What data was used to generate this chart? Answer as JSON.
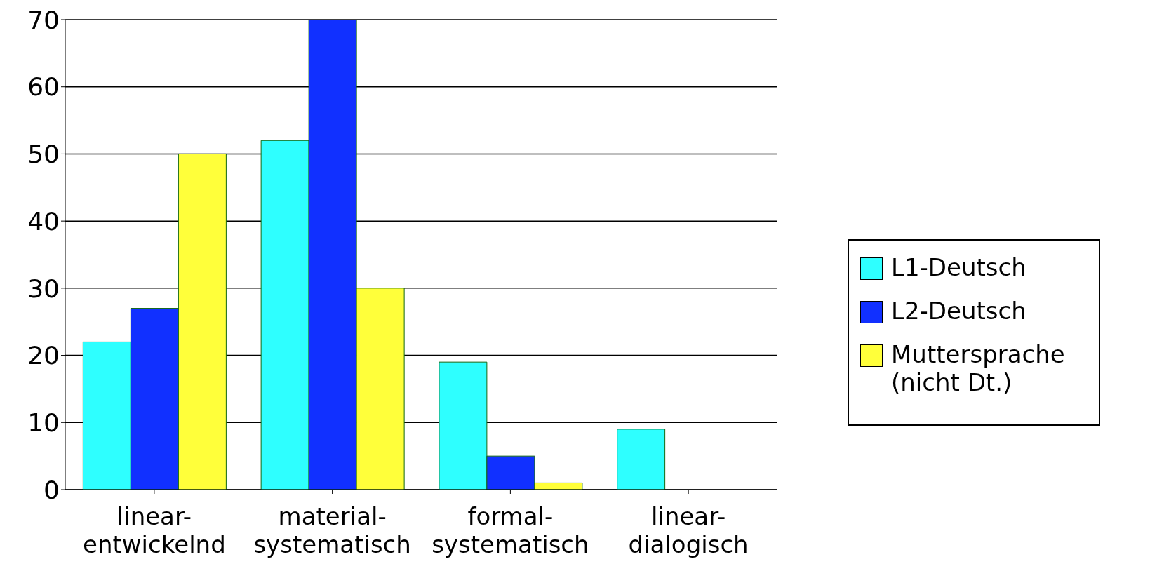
{
  "chart_data": {
    "type": "bar",
    "categories": [
      "linear-entwickelnd",
      "material-systematisch",
      "formal-systematisch",
      "linear-dialogisch"
    ],
    "series": [
      {
        "name": "L1-Deutsch",
        "color": "#2effff",
        "values": [
          22,
          52,
          19,
          9
        ]
      },
      {
        "name": "L2-Deutsch",
        "color": "#1130ff",
        "values": [
          27,
          70,
          5,
          0
        ]
      },
      {
        "name": "Muttersprache (nicht Dt.)",
        "color": "#ffff3a",
        "values": [
          50,
          30,
          1,
          0
        ]
      }
    ],
    "ylim": [
      0,
      70
    ],
    "yticks": [
      0,
      10,
      20,
      30,
      40,
      50,
      60,
      70
    ],
    "grid": "y",
    "legend": "right"
  }
}
